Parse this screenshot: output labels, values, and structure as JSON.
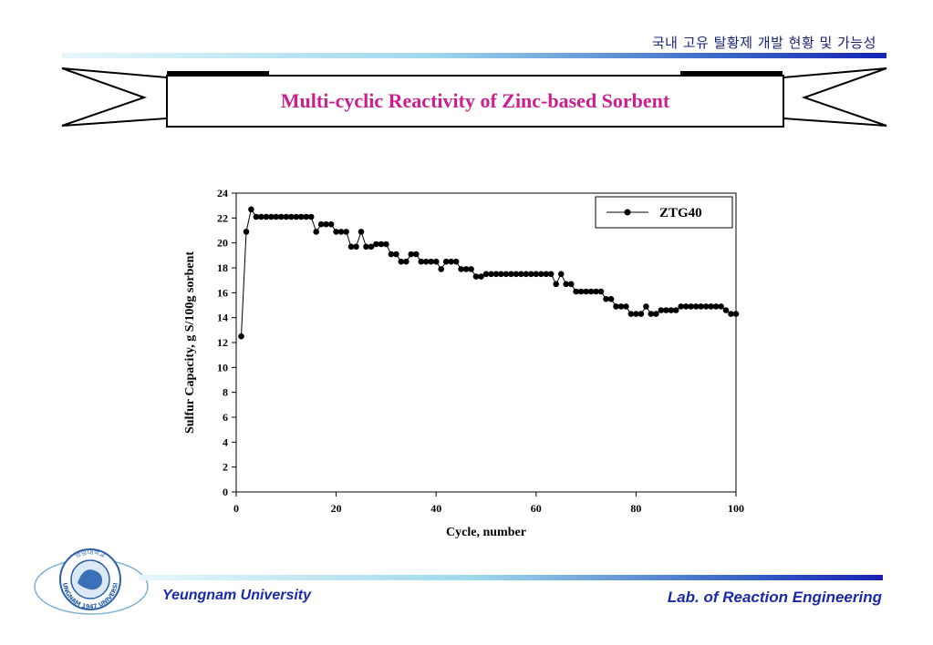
{
  "header": {
    "text": "국내 고유  탈황제  개발 현황 및 가능성"
  },
  "banner": {
    "title": "Multi-cyclic Reactivity of Zinc-based Sorbent"
  },
  "footer": {
    "left": "Yeungnam  University",
    "right": "Lab. of Reaction Engineering"
  },
  "logo": {
    "icon": "university-seal-icon",
    "seal_text": "YEUNGNAM 1947 UNIVERSITY",
    "seal_korean": "영남대학교"
  },
  "colors": {
    "title": "#cc1f8f",
    "footer": "#1a2aa8",
    "rule_start": "#e6f7fb",
    "rule_end": "#1622b4"
  },
  "chart_data": {
    "type": "line",
    "xlabel": "Cycle, number",
    "ylabel": "Sulfur Capacity, g S/100g sorbent",
    "xlim": [
      0,
      100
    ],
    "ylim": [
      0,
      24
    ],
    "xticks": [
      0,
      20,
      40,
      60,
      80,
      100
    ],
    "yticks": [
      0,
      2,
      4,
      6,
      8,
      10,
      12,
      14,
      16,
      18,
      20,
      22,
      24
    ],
    "legend_position": "top-right",
    "series": [
      {
        "name": "ZTG40",
        "x": [
          1,
          2,
          3,
          4,
          5,
          6,
          7,
          8,
          9,
          10,
          11,
          12,
          13,
          14,
          15,
          16,
          17,
          18,
          19,
          20,
          21,
          22,
          23,
          24,
          25,
          26,
          27,
          28,
          29,
          30,
          31,
          32,
          33,
          34,
          35,
          36,
          37,
          38,
          39,
          40,
          41,
          42,
          43,
          44,
          45,
          46,
          47,
          48,
          49,
          50,
          51,
          52,
          53,
          54,
          55,
          56,
          57,
          58,
          59,
          60,
          61,
          62,
          63,
          64,
          65,
          66,
          67,
          68,
          69,
          70,
          71,
          72,
          73,
          74,
          75,
          76,
          77,
          78,
          79,
          80,
          81,
          82,
          83,
          84,
          85,
          86,
          87,
          88,
          89,
          90,
          91,
          92,
          93,
          94,
          95,
          96,
          97,
          98,
          99,
          100
        ],
        "y": [
          12.5,
          20.9,
          22.7,
          22.1,
          22.1,
          22.1,
          22.1,
          22.1,
          22.1,
          22.1,
          22.1,
          22.1,
          22.1,
          22.1,
          22.1,
          20.9,
          21.5,
          21.5,
          21.5,
          20.9,
          20.9,
          20.9,
          19.7,
          19.7,
          20.9,
          19.7,
          19.7,
          19.9,
          19.9,
          19.9,
          19.1,
          19.1,
          18.5,
          18.5,
          19.1,
          19.1,
          18.5,
          18.5,
          18.5,
          18.5,
          17.9,
          18.5,
          18.5,
          18.5,
          17.9,
          17.9,
          17.9,
          17.3,
          17.3,
          17.5,
          17.5,
          17.5,
          17.5,
          17.5,
          17.5,
          17.5,
          17.5,
          17.5,
          17.5,
          17.5,
          17.5,
          17.5,
          17.5,
          16.7,
          17.5,
          16.7,
          16.7,
          16.1,
          16.1,
          16.1,
          16.1,
          16.1,
          16.1,
          15.5,
          15.5,
          14.9,
          14.9,
          14.9,
          14.3,
          14.3,
          14.3,
          14.9,
          14.3,
          14.3,
          14.6,
          14.6,
          14.6,
          14.6,
          14.9,
          14.9,
          14.9,
          14.9,
          14.9,
          14.9,
          14.9,
          14.9,
          14.9,
          14.6,
          14.3,
          14.3
        ]
      }
    ]
  }
}
